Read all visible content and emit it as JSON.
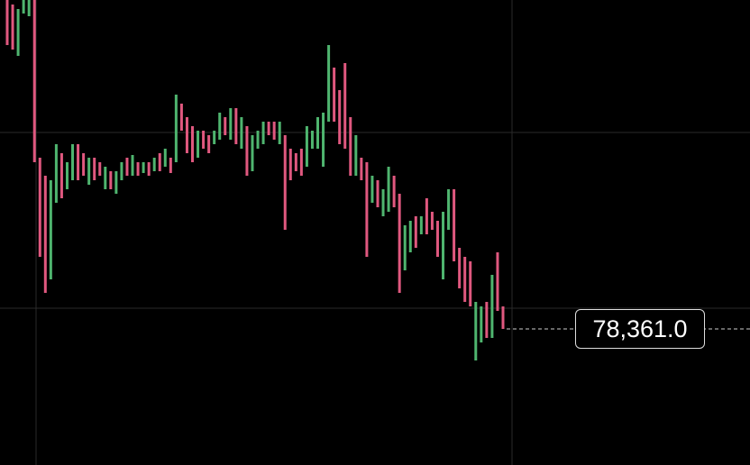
{
  "chart_data": {
    "type": "candlestick",
    "ylim": [
      76851,
      82011
    ],
    "up_color": "#4fb56f",
    "down_color": "#e0587f",
    "candles": [
      [
        82011,
        81511
      ],
      [
        81961,
        81461
      ],
      [
        81391,
        81911
      ],
      [
        81861,
        82011
      ],
      [
        81831,
        82011
      ],
      [
        82011,
        80211
      ],
      [
        80261,
        79161
      ],
      [
        80061,
        78761
      ],
      [
        78911,
        80011
      ],
      [
        79761,
        80411
      ],
      [
        80311,
        79811
      ],
      [
        79911,
        80211
      ],
      [
        80011,
        80411
      ],
      [
        80411,
        80011
      ],
      [
        80311,
        80061
      ],
      [
        79961,
        80261
      ],
      [
        80261,
        80011
      ],
      [
        80211,
        80061
      ],
      [
        79911,
        80161
      ],
      [
        80111,
        79911
      ],
      [
        79861,
        80111
      ],
      [
        80011,
        80211
      ],
      [
        80261,
        80061
      ],
      [
        80061,
        80291
      ],
      [
        80211,
        80061
      ],
      [
        80091,
        80211
      ],
      [
        80211,
        80061
      ],
      [
        80111,
        80261
      ],
      [
        80311,
        80111
      ],
      [
        80161,
        80361
      ],
      [
        80261,
        80091
      ],
      [
        80211,
        80961
      ],
      [
        80861,
        80561
      ],
      [
        80711,
        80311
      ],
      [
        80611,
        80211
      ],
      [
        80261,
        80561
      ],
      [
        80561,
        80361
      ],
      [
        80511,
        80311
      ],
      [
        80411,
        80561
      ],
      [
        80461,
        80761
      ],
      [
        80711,
        80511
      ],
      [
        80461,
        80811
      ],
      [
        80811,
        80411
      ],
      [
        80361,
        80711
      ],
      [
        80611,
        80061
      ],
      [
        80111,
        80511
      ],
      [
        80361,
        80561
      ],
      [
        80411,
        80661
      ],
      [
        80661,
        80511
      ],
      [
        80661,
        80461
      ],
      [
        80411,
        80661
      ],
      [
        80511,
        79461
      ],
      [
        80361,
        80011
      ],
      [
        80311,
        80111
      ],
      [
        80361,
        80061
      ],
      [
        80161,
        80611
      ],
      [
        80361,
        80561
      ],
      [
        80361,
        80711
      ],
      [
        80161,
        80761
      ],
      [
        80661,
        81511
      ],
      [
        81261,
        80661
      ],
      [
        81011,
        80411
      ],
      [
        81311,
        80361
      ],
      [
        80711,
        80061
      ],
      [
        80061,
        80511
      ],
      [
        80261,
        80011
      ],
      [
        80211,
        79161
      ],
      [
        79761,
        80061
      ],
      [
        80011,
        79711
      ],
      [
        79611,
        79911
      ],
      [
        79661,
        80161
      ],
      [
        80061,
        79711
      ],
      [
        79861,
        78761
      ],
      [
        79011,
        79511
      ],
      [
        79211,
        79561
      ],
      [
        79611,
        79261
      ],
      [
        79411,
        79611
      ],
      [
        79811,
        79411
      ],
      [
        79661,
        79461
      ],
      [
        79561,
        79161
      ],
      [
        78911,
        79661
      ],
      [
        79461,
        79911
      ],
      [
        79911,
        79111
      ],
      [
        79261,
        78811
      ],
      [
        79161,
        78661
      ],
      [
        79111,
        78611
      ],
      [
        78011,
        78661
      ],
      [
        78211,
        78611
      ],
      [
        78661,
        78261
      ],
      [
        78261,
        78961
      ],
      [
        79211,
        78561
      ],
      [
        78611,
        78361
      ]
    ],
    "last_price": {
      "value": 78361,
      "label": "78,361.0"
    }
  }
}
